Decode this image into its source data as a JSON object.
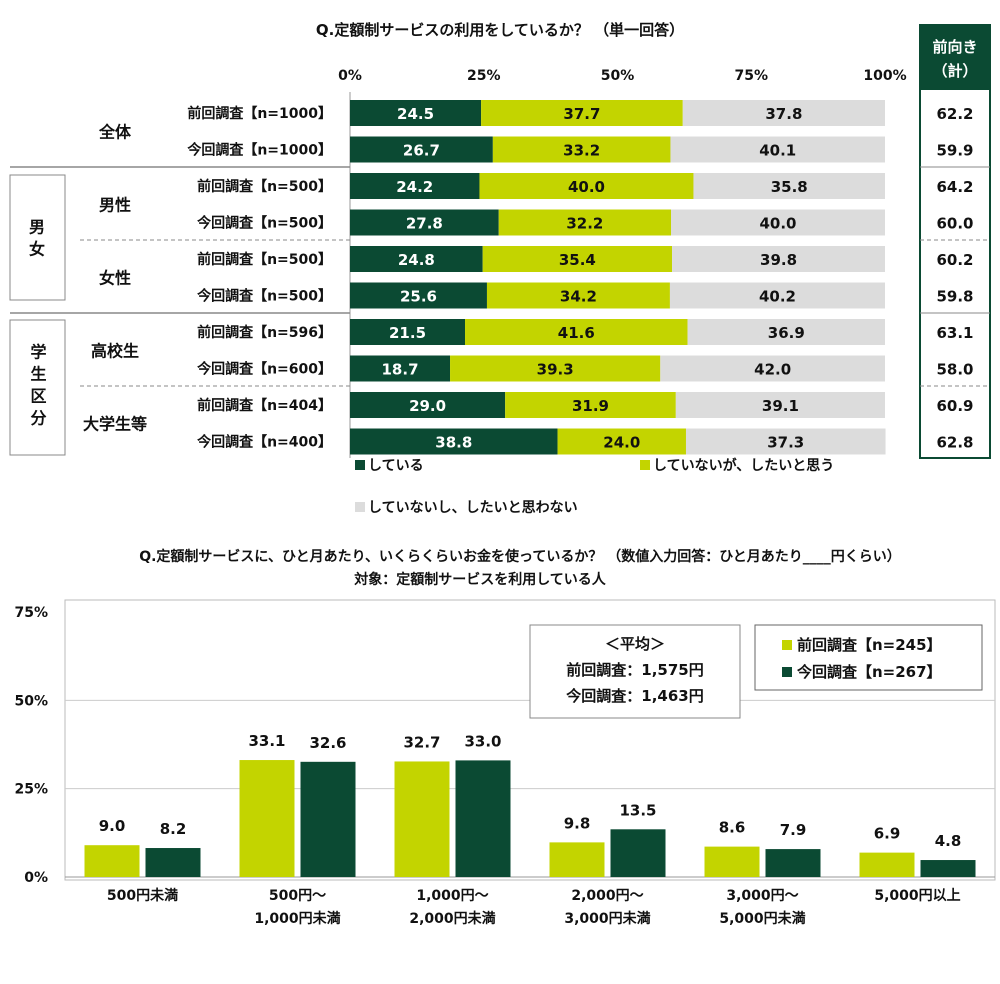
{
  "colors": {
    "doing": "#0b4a33",
    "want": "#c3d400",
    "not": "#dcdcdc",
    "prev": "#c3d400",
    "curr": "#0b4a33"
  },
  "chart_data": [
    {
      "type": "bar",
      "orientation": "horizontal-stacked",
      "title": "Q.定額制サービスの利用をしているか？ （単一回答）",
      "ticks": [
        "0%",
        "25%",
        "50%",
        "75%",
        "100%"
      ],
      "xlim": [
        0,
        100
      ],
      "right_header": [
        "前向き",
        "（計）"
      ],
      "series_names": [
        "している",
        "していないが、したいと思う",
        "していないし、したいと思わない"
      ],
      "groups": [
        {
          "label": "",
          "subgroups": [
            {
              "label": "全体",
              "rows": [
                0,
                1
              ]
            }
          ]
        },
        {
          "label": "男女",
          "subgroups": [
            {
              "label": "男性",
              "rows": [
                2,
                3
              ]
            },
            {
              "label": "女性",
              "rows": [
                4,
                5
              ]
            }
          ]
        },
        {
          "label": "学生区分",
          "subgroups": [
            {
              "label": "高校生",
              "rows": [
                6,
                7
              ]
            },
            {
              "label": "大学生等",
              "rows": [
                8,
                9
              ]
            }
          ]
        }
      ],
      "rows": [
        {
          "label": "前回調査【n=1000】",
          "values": [
            24.5,
            37.7,
            37.8
          ],
          "total": "62.2"
        },
        {
          "label": "今回調査【n=1000】",
          "values": [
            26.7,
            33.2,
            40.1
          ],
          "total": "59.9"
        },
        {
          "label": "前回調査【n=500】",
          "values": [
            24.2,
            40.0,
            35.8
          ],
          "total": "64.2"
        },
        {
          "label": "今回調査【n=500】",
          "values": [
            27.8,
            32.2,
            40.0
          ],
          "total": "60.0"
        },
        {
          "label": "前回調査【n=500】",
          "values": [
            24.8,
            35.4,
            39.8
          ],
          "total": "60.2"
        },
        {
          "label": "今回調査【n=500】",
          "values": [
            25.6,
            34.2,
            40.2
          ],
          "total": "59.8"
        },
        {
          "label": "前回調査【n=596】",
          "values": [
            21.5,
            41.6,
            36.9
          ],
          "total": "63.1"
        },
        {
          "label": "今回調査【n=600】",
          "values": [
            18.7,
            39.3,
            42.0
          ],
          "total": "58.0"
        },
        {
          "label": "前回調査【n=404】",
          "values": [
            29.0,
            31.9,
            39.1
          ],
          "total": "60.9"
        },
        {
          "label": "今回調査【n=400】",
          "values": [
            38.8,
            24.0,
            37.3
          ],
          "total": "62.8"
        }
      ]
    },
    {
      "type": "bar",
      "title": "Q.定額制サービスに、ひと月あたり、いくらくらいお金を使っているか？ （数値入力回答：ひと月あたり____円くらい）",
      "subtitle": "対象：定額制サービスを利用している人",
      "ylim": [
        0,
        75
      ],
      "yticks": [
        "0%",
        "25%",
        "50%",
        "75%"
      ],
      "categories": [
        [
          "500円未満"
        ],
        [
          "500円～",
          "1,000円未満"
        ],
        [
          "1,000円～",
          "2,000円未満"
        ],
        [
          "2,000円～",
          "3,000円未満"
        ],
        [
          "3,000円～",
          "5,000円未満"
        ],
        [
          "5,000円以上"
        ]
      ],
      "series": [
        {
          "name": "前回調査【n=245】",
          "values": [
            9.0,
            33.1,
            32.7,
            9.8,
            8.6,
            6.9
          ]
        },
        {
          "name": "今回調査【n=267】",
          "values": [
            8.2,
            32.6,
            33.0,
            13.5,
            7.9,
            4.8
          ]
        }
      ],
      "average_box": [
        "＜平均＞",
        "前回調査：1,575円",
        "今回調査：1,463円"
      ],
      "legend": "top-right"
    }
  ]
}
